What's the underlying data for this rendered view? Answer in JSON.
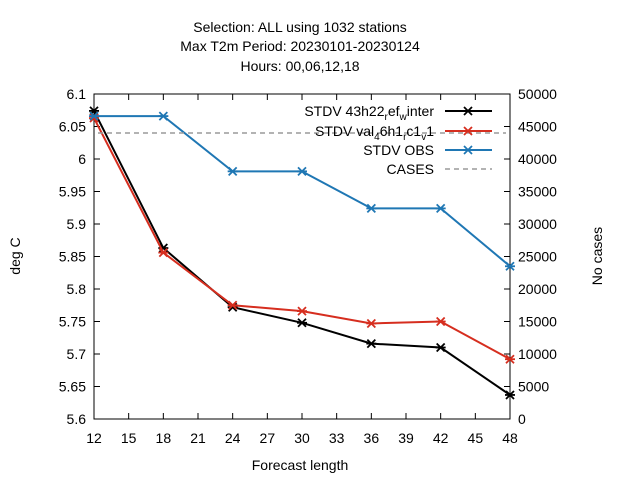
{
  "title_lines": [
    "Selection: ALL using  1032 stations",
    "Max T2m   Period: 20230101-20230124",
    "Hours:  00,06,12,18"
  ],
  "chart_data": {
    "type": "line",
    "xlabel": "Forecast length",
    "ylabel": "deg C",
    "y2label": "No cases",
    "xlim": [
      12,
      48
    ],
    "ylim": [
      5.6,
      6.1
    ],
    "y2lim": [
      0,
      50000
    ],
    "xticks": [
      "12",
      "15",
      "18",
      "21",
      "24",
      "27",
      "30",
      "33",
      "36",
      "39",
      "42",
      "45",
      "48"
    ],
    "yticks": [
      "5.6",
      "5.65",
      "5.7",
      "5.75",
      "5.8",
      "5.85",
      "5.9",
      "5.95",
      "6",
      "6.05",
      "6.1"
    ],
    "y2ticks": [
      "0",
      "5000",
      "10000",
      "15000",
      "20000",
      "25000",
      "30000",
      "35000",
      "40000",
      "45000",
      "50000"
    ],
    "legend_position": "top-right",
    "x": [
      12,
      18,
      24,
      30,
      36,
      42,
      48
    ],
    "series": [
      {
        "name_parts": [
          {
            "t": "STDV 43h22"
          },
          {
            "t": "r",
            "sub": true
          },
          {
            "t": "ef"
          },
          {
            "t": "w",
            "sub": true
          },
          {
            "t": "inter"
          }
        ],
        "color": "#000000",
        "axis": "y1",
        "values": [
          6.074,
          5.863,
          5.772,
          5.748,
          5.716,
          5.71,
          5.637
        ]
      },
      {
        "name_parts": [
          {
            "t": "STDV val"
          },
          {
            "t": "4",
            "sub": true
          },
          {
            "t": "6h1"
          },
          {
            "t": "r",
            "sub": true
          },
          {
            "t": "c1"
          },
          {
            "t": "v",
            "sub": true
          },
          {
            "t": "1"
          }
        ],
        "color": "#d62e1f",
        "axis": "y1",
        "values": [
          6.063,
          5.856,
          5.775,
          5.766,
          5.747,
          5.75,
          5.692
        ]
      },
      {
        "name_parts": [
          {
            "t": "STDV OBS"
          }
        ],
        "color": "#1f77b4",
        "axis": "y1",
        "values": [
          6.066,
          6.066,
          5.981,
          5.981,
          5.924,
          5.924,
          5.835
        ]
      },
      {
        "name_parts": [
          {
            "t": "CASES"
          }
        ],
        "color": "#9a9a9a",
        "axis": "y2",
        "dashed": true,
        "values": [
          44000,
          44000,
          44000,
          44000,
          44000,
          44000,
          44000
        ]
      }
    ]
  }
}
